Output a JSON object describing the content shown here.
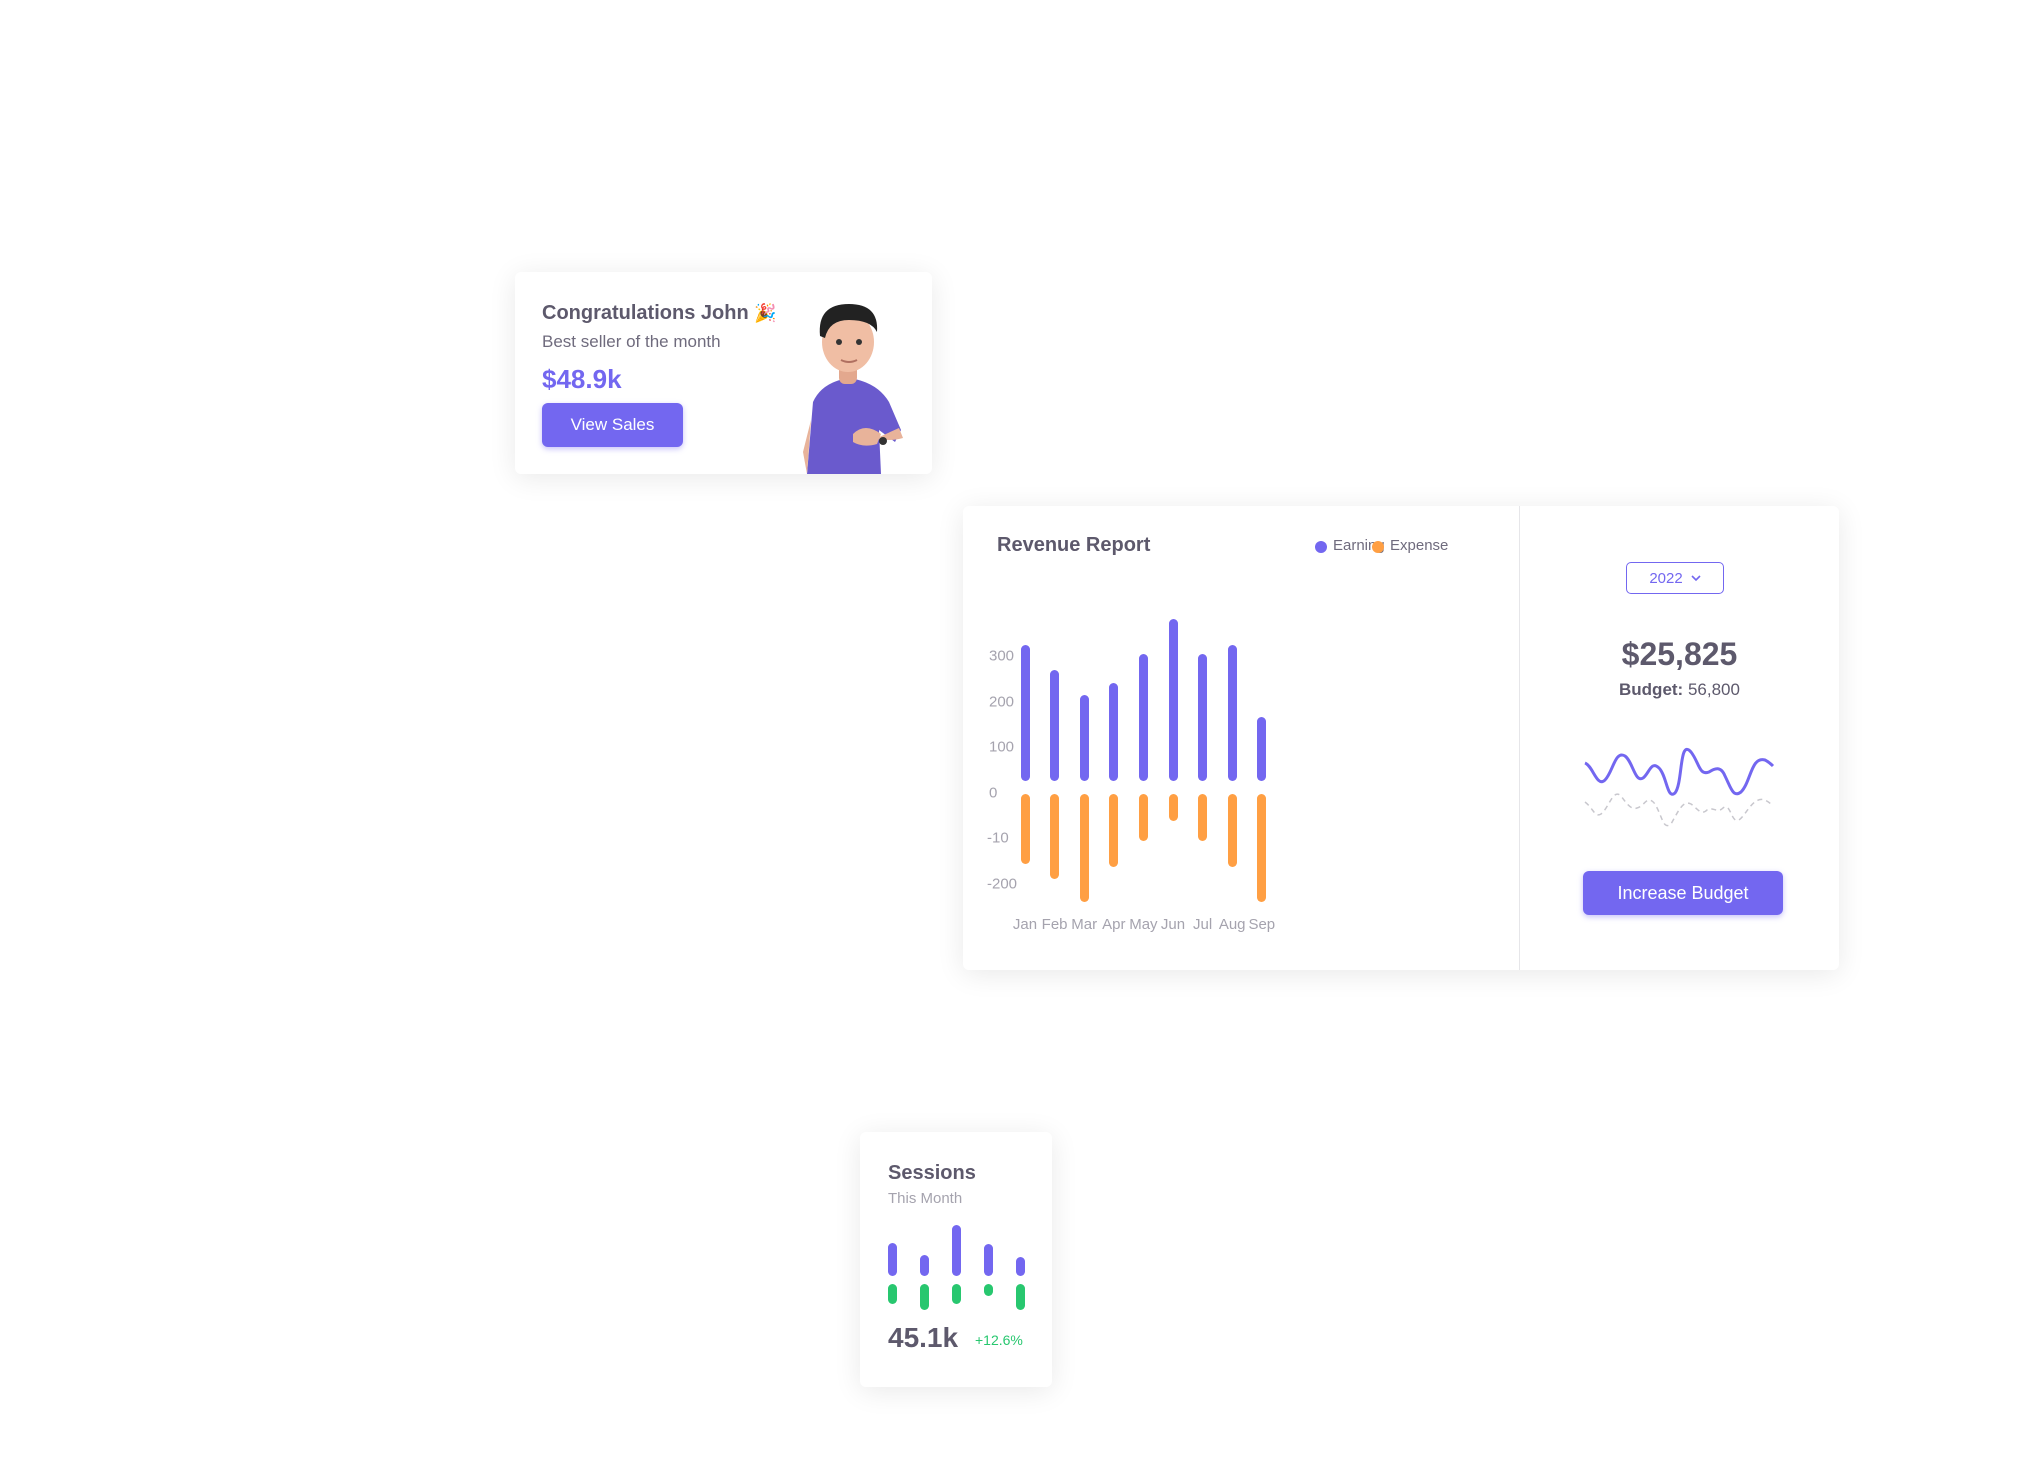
{
  "congrats_card": {
    "title": "Congratulations John",
    "emoji": "🎉",
    "subtitle": "Best seller of the month",
    "amount": "$48.9k",
    "button": "View Sales"
  },
  "revenue_card": {
    "title": "Revenue Report",
    "year_select": "2022",
    "total": "$25,825",
    "budget_label": "Budget:",
    "budget_value": "56,800",
    "button": "Increase Budget"
  },
  "sessions_card": {
    "title": "Sessions",
    "subtitle": "This Month",
    "value": "45.1k",
    "change": "+12.6%"
  },
  "colors": {
    "earning": "#7367f0",
    "expense": "#ff9f43",
    "sessions_up": "#7367f0",
    "sessions_down": "#28c76f",
    "positive": "#28c76f"
  },
  "chart_data": [
    {
      "type": "bar",
      "title": "Revenue Report",
      "categories": [
        "Jan",
        "Feb",
        "Mar",
        "Apr",
        "May",
        "Jun",
        "Jul",
        "Aug",
        "Sep"
      ],
      "y_tick_labels": [
        "300",
        "200",
        "100",
        "0",
        "-10",
        "-200"
      ],
      "ylim": [
        -250,
        360
      ],
      "legend_position": "top-right",
      "series": [
        {
          "name": "Earning",
          "values": [
            300,
            245,
            190,
            215,
            280,
            355,
            280,
            300,
            140
          ]
        },
        {
          "name": "Expense",
          "values": [
            -160,
            -193,
            -245,
            -167,
            -110,
            -66,
            -110,
            -167,
            -245
          ]
        }
      ]
    },
    {
      "type": "bar",
      "title": "Sessions",
      "categories": [
        "1",
        "2",
        "3",
        "4",
        "5"
      ],
      "series": [
        {
          "values": [
            33,
            21,
            51,
            32,
            19
          ]
        },
        {
          "values": [
            -20,
            -26,
            -20,
            -12,
            -26
          ]
        }
      ]
    }
  ]
}
